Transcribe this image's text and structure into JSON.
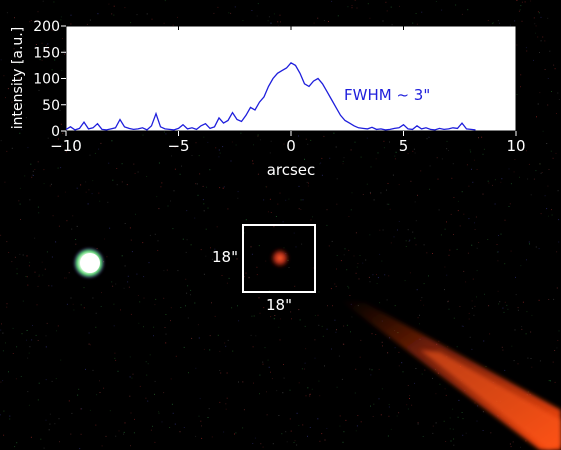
{
  "chart_data": {
    "type": "line",
    "title": "",
    "xlabel": "arcsec",
    "ylabel": "intensity [a.u.]",
    "xlim": [
      -10,
      10
    ],
    "ylim": [
      0,
      200
    ],
    "xticks": [
      -10,
      -5,
      0,
      5,
      10
    ],
    "yticks": [
      0,
      50,
      100,
      150,
      200
    ],
    "xtick_labels": [
      "−10",
      "−5",
      "0",
      "5",
      "10"
    ],
    "ytick_labels": [
      "0",
      "50",
      "100",
      "150",
      "200"
    ],
    "grid": false,
    "annotation": "FWHM ~ 3\"",
    "series": [
      {
        "color": "#1f1fdc",
        "x": [
          -10,
          -9.8,
          -9.6,
          -9.4,
          -9.2,
          -9.0,
          -8.8,
          -8.6,
          -8.4,
          -8.2,
          -8.0,
          -7.8,
          -7.6,
          -7.4,
          -7.2,
          -7.0,
          -6.8,
          -6.6,
          -6.4,
          -6.2,
          -6.0,
          -5.8,
          -5.6,
          -5.4,
          -5.2,
          -5.0,
          -4.8,
          -4.6,
          -4.4,
          -4.2,
          -4.0,
          -3.8,
          -3.6,
          -3.4,
          -3.2,
          -3.0,
          -2.8,
          -2.6,
          -2.4,
          -2.2,
          -2.0,
          -1.8,
          -1.6,
          -1.4,
          -1.2,
          -1.0,
          -0.8,
          -0.6,
          -0.4,
          -0.2,
          0.0,
          0.2,
          0.4,
          0.6,
          0.8,
          1.0,
          1.2,
          1.4,
          1.6,
          1.8,
          2.0,
          2.2,
          2.4,
          2.6,
          2.8,
          3.0,
          3.2,
          3.4,
          3.6,
          3.8,
          4.0,
          4.2,
          4.4,
          4.6,
          4.8,
          5.0,
          5.2,
          5.4,
          5.6,
          5.8,
          6.0,
          6.2,
          6.4,
          6.6,
          6.8,
          7.0,
          7.2,
          7.4,
          7.6,
          7.8,
          8.0,
          8.2
        ],
        "y": [
          3,
          8,
          2,
          5,
          17,
          4,
          6,
          14,
          3,
          2,
          4,
          6,
          22,
          8,
          5,
          3,
          4,
          6,
          2,
          10,
          33,
          8,
          4,
          3,
          2,
          5,
          12,
          4,
          6,
          3,
          10,
          14,
          5,
          8,
          25,
          15,
          20,
          35,
          22,
          18,
          30,
          45,
          40,
          55,
          65,
          85,
          100,
          110,
          115,
          120,
          130,
          125,
          110,
          90,
          85,
          95,
          100,
          90,
          75,
          60,
          45,
          30,
          20,
          15,
          10,
          6,
          5,
          4,
          7,
          3,
          4,
          2,
          3,
          5,
          6,
          12,
          4,
          3,
          10,
          4,
          6,
          3,
          2,
          5,
          3,
          4,
          6,
          5,
          15,
          4,
          3,
          2
        ]
      }
    ]
  },
  "image": {
    "box_label_left": "18\"",
    "box_label_bottom": "18\"",
    "box_color": "#ffffff"
  }
}
